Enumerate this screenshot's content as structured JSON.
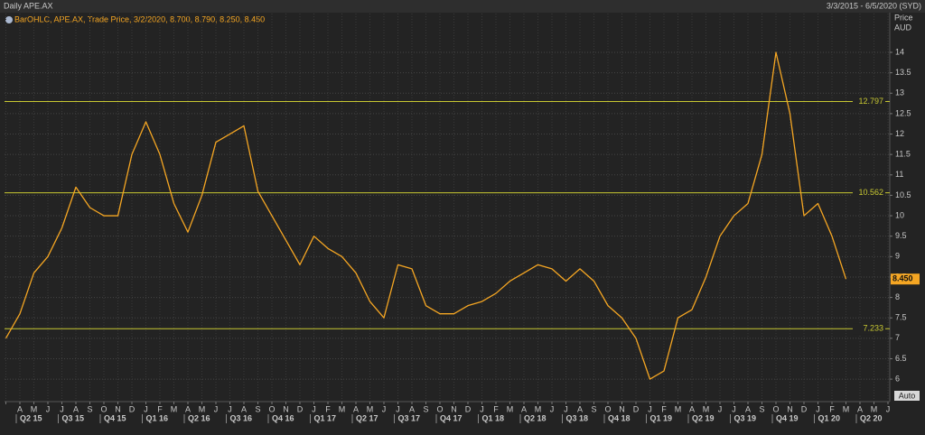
{
  "header": {
    "title": "Daily APE.AX",
    "range": "3/3/2015 - 6/5/2020 (SYD)"
  },
  "chart_data": {
    "type": "line",
    "legend": "BarOHLC, APE.AX, Trade Price, 3/2/2020, 8.700, 8.790, 8.250, 8.450",
    "y_axis_label": [
      "Price",
      "AUD"
    ],
    "categories": [
      null,
      "A",
      "M",
      "J",
      "J",
      "A",
      "S",
      "O",
      "N",
      "D",
      "J",
      "F",
      "M",
      "A",
      "M",
      "J",
      "J",
      "A",
      "S",
      "O",
      "N",
      "D",
      "J",
      "F",
      "M",
      "A",
      "M",
      "J",
      "J",
      "A",
      "S",
      "O",
      "N",
      "D",
      "J",
      "F",
      "M",
      "A",
      "M",
      "J",
      "J",
      "A",
      "S",
      "O",
      "N",
      "D",
      "J",
      "F",
      "M",
      "A",
      "M",
      "J",
      "J",
      "A",
      "S",
      "O",
      "N",
      "D",
      "J",
      "F",
      "M",
      "A",
      "M",
      "J"
    ],
    "quarters": [
      "Q2 15",
      "Q3 15",
      "Q4 15",
      "Q1 16",
      "Q2 16",
      "Q3 16",
      "Q4 16",
      "Q1 17",
      "Q2 17",
      "Q3 17",
      "Q4 17",
      "Q1 18",
      "Q2 18",
      "Q3 18",
      "Q4 18",
      "Q1 19",
      "Q2 19",
      "Q3 19",
      "Q4 19",
      "Q1 20",
      "Q2 20"
    ],
    "series": [
      {
        "name": "APE.AX",
        "color": "#f5a623",
        "values": [
          7.0,
          7.6,
          8.6,
          9.0,
          9.7,
          10.7,
          10.2,
          10.0,
          10.0,
          11.5,
          12.3,
          11.5,
          10.3,
          9.6,
          10.5,
          11.8,
          12.0,
          12.2,
          10.6,
          10.0,
          9.4,
          8.8,
          9.5,
          9.2,
          9.0,
          8.6,
          7.9,
          7.5,
          8.8,
          8.7,
          7.8,
          7.6,
          7.6,
          7.8,
          7.9,
          8.1,
          8.4,
          8.6,
          8.8,
          8.7,
          8.4,
          8.7,
          8.4,
          7.8,
          7.5,
          7.0,
          6.0,
          6.2,
          7.5,
          7.7,
          8.5,
          9.5,
          10.0,
          10.3,
          11.5,
          14.0,
          12.5,
          10.0,
          10.3,
          9.5,
          8.45,
          null,
          null,
          null
        ]
      }
    ],
    "last_price": 8.45,
    "last_price_label": "8.450",
    "levels": [
      12.797,
      10.562,
      7.233
    ],
    "level_color": "#c8c832",
    "ylim": [
      5.45,
      14.95
    ],
    "yticks": [
      6,
      6.5,
      7,
      7.5,
      8,
      8.5,
      9,
      9.5,
      10,
      10.5,
      11,
      11.5,
      12,
      12.5,
      13,
      13.5,
      14
    ],
    "grid": true,
    "button": "Auto"
  }
}
